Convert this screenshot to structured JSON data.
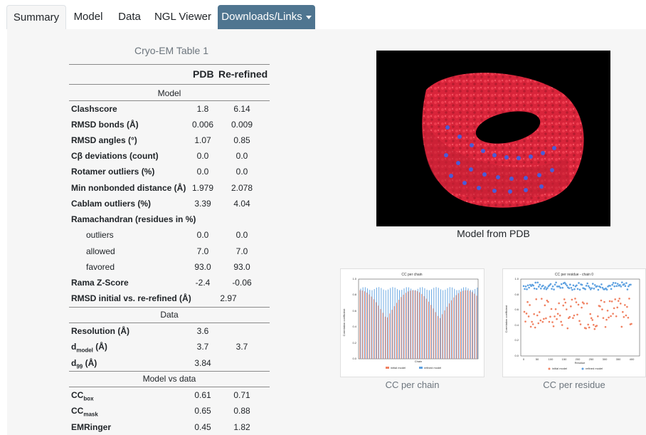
{
  "tabs": [
    {
      "label": "Summary",
      "active": true
    },
    {
      "label": "Model"
    },
    {
      "label": "Data"
    },
    {
      "label": "NGL Viewer"
    },
    {
      "label": "Downloads/Links",
      "dropdown": true
    }
  ],
  "table": {
    "caption": "Cryo-EM Table 1",
    "col_pdb": "PDB",
    "col_rerefined": "Re-refined",
    "section_model": "Model",
    "section_data": "Data",
    "section_mvd": "Model vs data",
    "rows": {
      "clashscore": {
        "label": "Clashscore",
        "pdb": "1.8",
        "ref": "6.14"
      },
      "rmsd_bonds": {
        "label": "RMSD bonds (Å)",
        "pdb": "0.006",
        "ref": "0.009"
      },
      "rmsd_angles": {
        "label": "RMSD angles (°)",
        "pdb": "1.07",
        "ref": "0.85"
      },
      "cbeta": {
        "label": "Cβ deviations (count)",
        "pdb": "0.0",
        "ref": "0.0"
      },
      "rotamer": {
        "label": "Rotamer outliers (%)",
        "pdb": "0.0",
        "ref": "0.0"
      },
      "min_nonbonded": {
        "label": "Min nonbonded distance (Å)",
        "pdb": "1.979",
        "ref": "2.078"
      },
      "cablam": {
        "label": "Cablam outliers (%)",
        "pdb": "3.39",
        "ref": "4.04"
      },
      "rama_header": {
        "label": "Ramachandran (residues in %)"
      },
      "outliers": {
        "label": "outliers",
        "pdb": "0.0",
        "ref": "0.0"
      },
      "allowed": {
        "label": "allowed",
        "pdb": "7.0",
        "ref": "7.0"
      },
      "favored": {
        "label": "favored",
        "pdb": "93.0",
        "ref": "93.0"
      },
      "rama_z": {
        "label": "Rama Z-Score",
        "pdb": "-2.4",
        "ref": "-0.06"
      },
      "rmsd_init": {
        "label": "RMSD initial vs. re-refined (Å)",
        "value": "2.97"
      },
      "resolution": {
        "label": "Resolution (Å)",
        "pdb": "3.6"
      },
      "d_model": {
        "label_main": "d",
        "label_sub": "model",
        "label_tail": " (Å)",
        "pdb": "3.7",
        "ref": "3.7"
      },
      "d_99": {
        "label_main": "d",
        "label_sub": "99",
        "label_tail": " (Å)",
        "pdb": "3.84"
      },
      "cc_box": {
        "label_main": "CC",
        "label_sub": "box",
        "pdb": "0.61",
        "ref": "0.71"
      },
      "cc_mask": {
        "label_main": "CC",
        "label_sub": "mask",
        "pdb": "0.65",
        "ref": "0.88"
      },
      "emringer": {
        "label": "EMRinger",
        "pdb": "0.45",
        "ref": "1.82"
      }
    }
  },
  "model_image": {
    "caption": "Model from PDB"
  },
  "plots": {
    "chain": {
      "caption": "CC per chain",
      "title": "CC per chain",
      "xlabel": "Chain",
      "ylabel": "Correlation coefficient",
      "legend": [
        "initial model",
        "refined model"
      ]
    },
    "residue": {
      "caption": "CC per residue",
      "title": "CC per residue - chain 0",
      "xlabel": "Residue",
      "ylabel": "Correlation coefficient",
      "legend": [
        "initial model",
        "refined model"
      ]
    }
  },
  "colors": {
    "tab_dropdown_bg": "#4f7590",
    "molecule": "#e02a3c",
    "ligand": "#4b5bd6",
    "initial_model": "#f08060",
    "refined_model": "#5ca0e0"
  }
}
